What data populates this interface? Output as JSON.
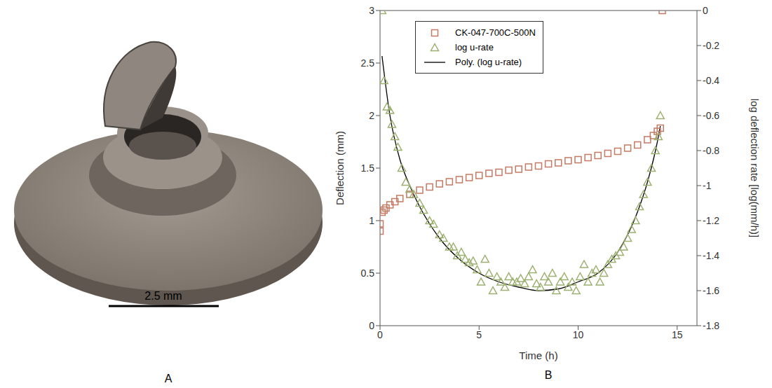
{
  "image": {
    "letter": "A",
    "scale_bar_label": "2.5 mm"
  },
  "chart_data": {
    "letter": "B",
    "type": "scatter",
    "x_label": "Time (h)",
    "y_label": "Deflection (mm)",
    "y2_label": "log deflection rate [log(mm/h)]",
    "xlim": [
      0,
      16
    ],
    "xticks": [
      0,
      5,
      10,
      15
    ],
    "ylim": [
      0,
      3
    ],
    "yticks": [
      0,
      0.5,
      1,
      1.5,
      2,
      2.5,
      3
    ],
    "y2lim": [
      -1.8,
      0
    ],
    "y2ticks": [
      -1.8,
      -1.6,
      -1.4,
      -1.2,
      -1,
      -0.8,
      -0.6,
      -0.4,
      -0.2,
      0
    ],
    "grid": false,
    "legend": "upper left",
    "series": [
      {
        "name": "CK-047-700C-500N",
        "type": "scatter",
        "marker": "square",
        "color": "#c47a63",
        "x": [
          0,
          0,
          0.1,
          0.2,
          0.3,
          0.5,
          0.75,
          1,
          1.5,
          2,
          2.5,
          3,
          3.5,
          4,
          4.5,
          5,
          5.5,
          6,
          6.5,
          7,
          7.5,
          8,
          8.5,
          9,
          9.5,
          10,
          10.5,
          11,
          11.5,
          12,
          12.5,
          13,
          13.5,
          13.8,
          14,
          14.15,
          14.25
        ],
        "values": [
          0.9,
          0.97,
          1.08,
          1.1,
          1.12,
          1.15,
          1.18,
          1.21,
          1.25,
          1.29,
          1.32,
          1.35,
          1.37,
          1.39,
          1.41,
          1.43,
          1.45,
          1.46,
          1.48,
          1.49,
          1.51,
          1.52,
          1.54,
          1.55,
          1.57,
          1.58,
          1.6,
          1.62,
          1.64,
          1.66,
          1.69,
          1.72,
          1.77,
          1.81,
          1.85,
          1.88,
          3
        ]
      },
      {
        "name": "log u-rate",
        "type": "scatter",
        "marker": "triangle",
        "color": "#9cb070",
        "axis": "y2",
        "x": [
          0.1,
          0.2,
          0.35,
          0.5,
          0.6,
          0.75,
          0.9,
          1.1,
          1.3,
          1.5,
          1.7,
          2,
          2.2,
          2.5,
          2.7,
          3,
          3.2,
          3.5,
          3.7,
          3.9,
          4.1,
          4.3,
          4.5,
          4.7,
          4.9,
          5.1,
          5.3,
          5.5,
          5.7,
          5.9,
          6.1,
          6.3,
          6.5,
          6.7,
          6.9,
          7.1,
          7.3,
          7.5,
          7.7,
          7.9,
          8.1,
          8.3,
          8.5,
          8.7,
          8.9,
          9.1,
          9.3,
          9.5,
          9.7,
          9.9,
          10.1,
          10.3,
          10.5,
          10.7,
          10.9,
          11.1,
          11.3,
          11.5,
          11.7,
          11.9,
          12.1,
          12.3,
          12.5,
          12.7,
          12.9,
          13.1,
          13.3,
          13.5,
          13.7,
          13.9,
          14.05,
          14.15
        ],
        "values": [
          0,
          -0.4,
          -0.55,
          -0.57,
          -0.65,
          -0.72,
          -0.78,
          -0.9,
          -0.98,
          -1.02,
          -1.05,
          -1.1,
          -1.14,
          -1.2,
          -1.22,
          -1.28,
          -1.3,
          -1.35,
          -1.35,
          -1.4,
          -1.38,
          -1.42,
          -1.44,
          -1.43,
          -1.48,
          -1.55,
          -1.42,
          -1.5,
          -1.6,
          -1.52,
          -1.55,
          -1.58,
          -1.52,
          -1.55,
          -1.55,
          -1.53,
          -1.56,
          -1.52,
          -1.48,
          -1.56,
          -1.58,
          -1.52,
          -1.55,
          -1.5,
          -1.6,
          -1.55,
          -1.52,
          -1.58,
          -1.55,
          -1.6,
          -1.52,
          -1.45,
          -1.55,
          -1.5,
          -1.48,
          -1.55,
          -1.5,
          -1.45,
          -1.42,
          -1.4,
          -1.38,
          -1.35,
          -1.3,
          -1.25,
          -1.2,
          -1.12,
          -1.05,
          -0.98,
          -0.9,
          -0.8,
          -0.72,
          -0.6
        ]
      },
      {
        "name": "Poly. (log u-rate)",
        "type": "line",
        "line_style": "solid",
        "color": "#000000",
        "axis": "y2",
        "x": [
          0.1,
          0.5,
          1,
          1.5,
          2,
          3,
          4,
          5,
          6,
          7,
          8,
          9,
          10,
          11,
          12,
          13,
          13.5,
          14,
          14.15
        ],
        "values": [
          -0.26,
          -0.6,
          -0.85,
          -1,
          -1.12,
          -1.3,
          -1.42,
          -1.5,
          -1.55,
          -1.58,
          -1.6,
          -1.59,
          -1.55,
          -1.5,
          -1.38,
          -1.15,
          -0.98,
          -0.75,
          -0.66
        ]
      }
    ]
  }
}
